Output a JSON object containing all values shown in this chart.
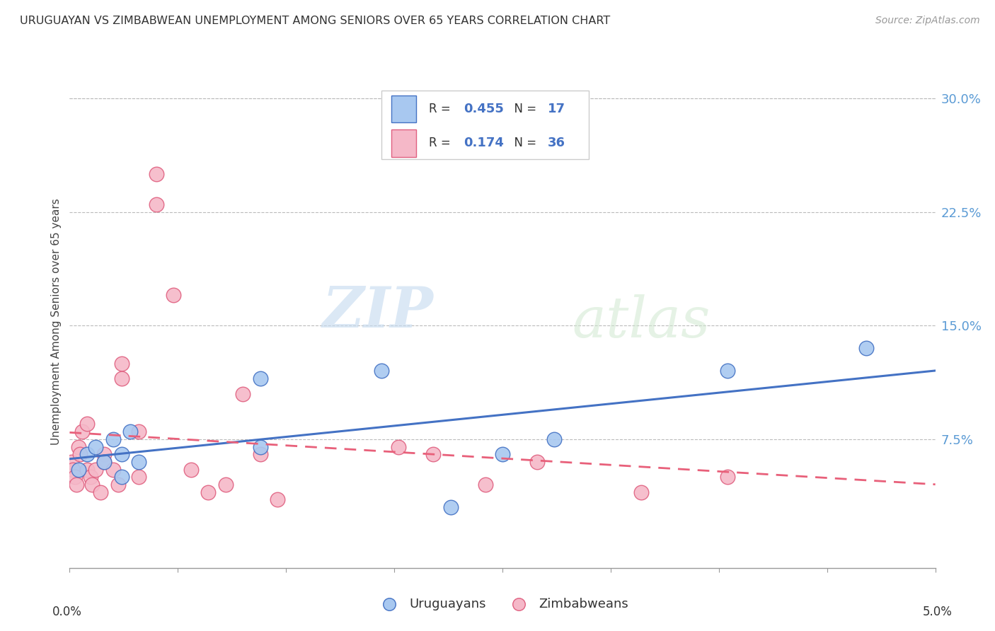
{
  "title": "URUGUAYAN VS ZIMBABWEAN UNEMPLOYMENT AMONG SENIORS OVER 65 YEARS CORRELATION CHART",
  "source": "Source: ZipAtlas.com",
  "ylabel": "Unemployment Among Seniors over 65 years",
  "right_yticks": [
    0.075,
    0.15,
    0.225,
    0.3
  ],
  "right_yticklabels": [
    "7.5%",
    "15.0%",
    "22.5%",
    "30.0%"
  ],
  "xlim": [
    0.0,
    0.05
  ],
  "ylim": [
    -0.01,
    0.315
  ],
  "watermark_zip": "ZIP",
  "watermark_atlas": "atlas",
  "uruguayan_color": "#A8C8F0",
  "zimbabwean_color": "#F5B8C8",
  "uruguayan_edge_color": "#4472C4",
  "zimbabwean_edge_color": "#E06080",
  "uruguayan_line_color": "#4472C4",
  "zimbabwean_line_color": "#E8607A",
  "uruguayan_x": [
    0.0005,
    0.001,
    0.0015,
    0.002,
    0.0025,
    0.003,
    0.003,
    0.0035,
    0.004,
    0.011,
    0.011,
    0.018,
    0.022,
    0.025,
    0.028,
    0.038,
    0.046
  ],
  "uruguayan_y": [
    0.055,
    0.065,
    0.07,
    0.06,
    0.075,
    0.065,
    0.05,
    0.08,
    0.06,
    0.115,
    0.07,
    0.12,
    0.03,
    0.065,
    0.075,
    0.12,
    0.135
  ],
  "zimbabwean_x": [
    0.0001,
    0.0002,
    0.0003,
    0.0004,
    0.0005,
    0.0006,
    0.0007,
    0.001,
    0.001,
    0.0012,
    0.0013,
    0.0015,
    0.0018,
    0.002,
    0.002,
    0.0025,
    0.0028,
    0.003,
    0.003,
    0.004,
    0.004,
    0.005,
    0.005,
    0.006,
    0.007,
    0.008,
    0.009,
    0.01,
    0.011,
    0.012,
    0.019,
    0.021,
    0.024,
    0.027,
    0.033,
    0.038
  ],
  "zimbabwean_y": [
    0.06,
    0.055,
    0.05,
    0.045,
    0.07,
    0.065,
    0.08,
    0.085,
    0.055,
    0.05,
    0.045,
    0.055,
    0.04,
    0.065,
    0.06,
    0.055,
    0.045,
    0.125,
    0.115,
    0.08,
    0.05,
    0.25,
    0.23,
    0.17,
    0.055,
    0.04,
    0.045,
    0.105,
    0.065,
    0.035,
    0.07,
    0.065,
    0.045,
    0.06,
    0.04,
    0.05
  ]
}
